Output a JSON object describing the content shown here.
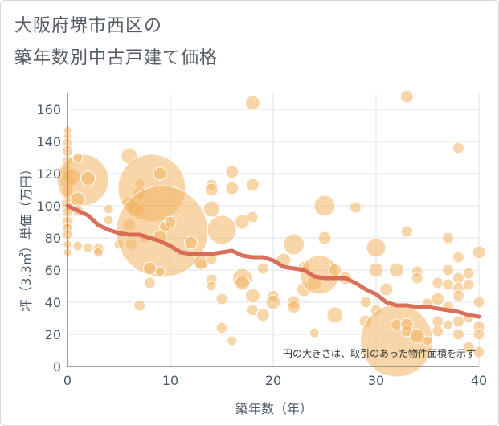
{
  "header": {
    "title_line1": "大阪府堺市西区の",
    "title_line2": "築年数別中古戸建て価格"
  },
  "chart_data": {
    "type": "scatter",
    "title": "大阪府堺市西区の築年数別中古戸建て価格",
    "xlabel": "築年数（年）",
    "ylabel": "坪（3.3㎡）単価（万円）",
    "xlim": [
      0,
      40
    ],
    "ylim": [
      0,
      170
    ],
    "x_ticks": [
      0,
      10,
      20,
      30,
      40
    ],
    "y_ticks": [
      0,
      20,
      40,
      60,
      80,
      100,
      120,
      140,
      160
    ],
    "grid": true,
    "note": "円の大きさは、取引のあった物件面積を示す",
    "colors": {
      "bubble": "#f3b562",
      "trend": "#d5604a",
      "grid": "#dde3ea"
    },
    "trend_line": {
      "x": [
        0,
        1,
        2,
        3,
        4,
        5,
        6,
        7,
        8,
        9,
        10,
        11,
        12,
        13,
        14,
        15,
        16,
        17,
        18,
        19,
        20,
        21,
        22,
        23,
        24,
        25,
        26,
        27,
        28,
        29,
        30,
        31,
        32,
        33,
        34,
        35,
        36,
        37,
        38,
        39,
        40
      ],
      "y": [
        100,
        97,
        94,
        88,
        85,
        83,
        82,
        82,
        80,
        78,
        75,
        71,
        70,
        70,
        70,
        71,
        72,
        69,
        68,
        68,
        66,
        62,
        61,
        60,
        56,
        55,
        55,
        55,
        52,
        48,
        45,
        40,
        38,
        38,
        37,
        37,
        36,
        35,
        34,
        32,
        31
      ]
    },
    "points": [
      {
        "x": 0,
        "y": 147,
        "s": 5
      },
      {
        "x": 0,
        "y": 143,
        "s": 5
      },
      {
        "x": 0,
        "y": 139,
        "s": 6
      },
      {
        "x": 0,
        "y": 134,
        "s": 7
      },
      {
        "x": 0,
        "y": 128,
        "s": 6
      },
      {
        "x": 0,
        "y": 121,
        "s": 8
      },
      {
        "x": 0,
        "y": 115,
        "s": 9
      },
      {
        "x": 0,
        "y": 109,
        "s": 7
      },
      {
        "x": 0,
        "y": 101,
        "s": 8
      },
      {
        "x": 0,
        "y": 96,
        "s": 6
      },
      {
        "x": 0,
        "y": 90,
        "s": 7
      },
      {
        "x": 0,
        "y": 86,
        "s": 6
      },
      {
        "x": 0,
        "y": 82,
        "s": 6
      },
      {
        "x": 0,
        "y": 76,
        "s": 5
      },
      {
        "x": 0,
        "y": 71,
        "s": 5
      },
      {
        "x": 0.4,
        "y": 118,
        "s": 11
      },
      {
        "x": 1.5,
        "y": 116,
        "s": 32
      },
      {
        "x": 1,
        "y": 130,
        "s": 6
      },
      {
        "x": 1,
        "y": 104,
        "s": 9
      },
      {
        "x": 1,
        "y": 97,
        "s": 7
      },
      {
        "x": 1,
        "y": 75,
        "s": 6
      },
      {
        "x": 2,
        "y": 117,
        "s": 9
      },
      {
        "x": 2,
        "y": 74,
        "s": 6
      },
      {
        "x": 3,
        "y": 73,
        "s": 7
      },
      {
        "x": 3,
        "y": 71,
        "s": 6
      },
      {
        "x": 4,
        "y": 91,
        "s": 6
      },
      {
        "x": 4,
        "y": 98,
        "s": 6
      },
      {
        "x": 5,
        "y": 76,
        "s": 6
      },
      {
        "x": 6,
        "y": 131,
        "s": 10
      },
      {
        "x": 6,
        "y": 101,
        "s": 9
      },
      {
        "x": 6,
        "y": 88,
        "s": 8
      },
      {
        "x": 6.5,
        "y": 98,
        "s": 8
      },
      {
        "x": 7,
        "y": 108,
        "s": 8
      },
      {
        "x": 7,
        "y": 114,
        "s": 6
      },
      {
        "x": 7,
        "y": 97,
        "s": 7
      },
      {
        "x": 6.2,
        "y": 76,
        "s": 7
      },
      {
        "x": 7,
        "y": 38,
        "s": 7
      },
      {
        "x": 7.5,
        "y": 80,
        "s": 6
      },
      {
        "x": 8.2,
        "y": 111,
        "s": 42
      },
      {
        "x": 9.2,
        "y": 84,
        "s": 57
      },
      {
        "x": 9,
        "y": 120,
        "s": 8
      },
      {
        "x": 8,
        "y": 61,
        "s": 8
      },
      {
        "x": 8,
        "y": 52,
        "s": 7
      },
      {
        "x": 9,
        "y": 59,
        "s": 6
      },
      {
        "x": 9,
        "y": 81,
        "s": 8
      },
      {
        "x": 9.5,
        "y": 87,
        "s": 7
      },
      {
        "x": 10,
        "y": 90,
        "s": 7
      },
      {
        "x": 12,
        "y": 77,
        "s": 8
      },
      {
        "x": 13,
        "y": 63,
        "s": 7
      },
      {
        "x": 13,
        "y": 65,
        "s": 9
      },
      {
        "x": 14,
        "y": 113,
        "s": 7
      },
      {
        "x": 14,
        "y": 110,
        "s": 8
      },
      {
        "x": 14,
        "y": 98,
        "s": 10
      },
      {
        "x": 14,
        "y": 67,
        "s": 7
      },
      {
        "x": 14,
        "y": 54,
        "s": 7
      },
      {
        "x": 14,
        "y": 50,
        "s": 6
      },
      {
        "x": 15,
        "y": 85,
        "s": 18
      },
      {
        "x": 15,
        "y": 42,
        "s": 7
      },
      {
        "x": 15,
        "y": 24,
        "s": 7
      },
      {
        "x": 16,
        "y": 121,
        "s": 8
      },
      {
        "x": 16,
        "y": 111,
        "s": 8
      },
      {
        "x": 16,
        "y": 16,
        "s": 6
      },
      {
        "x": 17,
        "y": 55,
        "s": 12
      },
      {
        "x": 17,
        "y": 52,
        "s": 9
      },
      {
        "x": 17,
        "y": 90,
        "s": 9
      },
      {
        "x": 18,
        "y": 164,
        "s": 9
      },
      {
        "x": 18,
        "y": 113,
        "s": 8
      },
      {
        "x": 18,
        "y": 93,
        "s": 7
      },
      {
        "x": 18,
        "y": 44,
        "s": 9
      },
      {
        "x": 18,
        "y": 35,
        "s": 7
      },
      {
        "x": 19,
        "y": 61,
        "s": 7
      },
      {
        "x": 19,
        "y": 32,
        "s": 8
      },
      {
        "x": 20,
        "y": 44,
        "s": 7
      },
      {
        "x": 20,
        "y": 40,
        "s": 9
      },
      {
        "x": 21,
        "y": 66,
        "s": 9
      },
      {
        "x": 22,
        "y": 76,
        "s": 13
      },
      {
        "x": 22,
        "y": 40,
        "s": 8
      },
      {
        "x": 22,
        "y": 37,
        "s": 8
      },
      {
        "x": 23,
        "y": 48,
        "s": 9
      },
      {
        "x": 23,
        "y": 62,
        "s": 7
      },
      {
        "x": 24,
        "y": 52,
        "s": 9
      },
      {
        "x": 24,
        "y": 21,
        "s": 6
      },
      {
        "x": 24.5,
        "y": 57,
        "s": 24
      },
      {
        "x": 25,
        "y": 100,
        "s": 13
      },
      {
        "x": 25,
        "y": 80,
        "s": 8
      },
      {
        "x": 26,
        "y": 60,
        "s": 8
      },
      {
        "x": 26,
        "y": 32,
        "s": 10
      },
      {
        "x": 27,
        "y": 55,
        "s": 8
      },
      {
        "x": 28,
        "y": 99,
        "s": 7
      },
      {
        "x": 29,
        "y": 40,
        "s": 7
      },
      {
        "x": 29,
        "y": 28,
        "s": 8
      },
      {
        "x": 30,
        "y": 74,
        "s": 12
      },
      {
        "x": 30,
        "y": 60,
        "s": 9
      },
      {
        "x": 30,
        "y": 35,
        "s": 7
      },
      {
        "x": 31,
        "y": 48,
        "s": 8
      },
      {
        "x": 32,
        "y": 16,
        "s": 45
      },
      {
        "x": 32,
        "y": 60,
        "s": 9
      },
      {
        "x": 32,
        "y": 26,
        "s": 7
      },
      {
        "x": 33,
        "y": 168,
        "s": 8
      },
      {
        "x": 33,
        "y": 84,
        "s": 7
      },
      {
        "x": 33,
        "y": 26,
        "s": 8
      },
      {
        "x": 33,
        "y": 22,
        "s": 7
      },
      {
        "x": 34,
        "y": 59,
        "s": 7
      },
      {
        "x": 34,
        "y": 55,
        "s": 7
      },
      {
        "x": 34,
        "y": 19,
        "s": 9
      },
      {
        "x": 35,
        "y": 39,
        "s": 7
      },
      {
        "x": 35,
        "y": 16,
        "s": 6
      },
      {
        "x": 36,
        "y": 52,
        "s": 7
      },
      {
        "x": 36,
        "y": 42,
        "s": 8
      },
      {
        "x": 36,
        "y": 28,
        "s": 7
      },
      {
        "x": 36,
        "y": 22,
        "s": 7
      },
      {
        "x": 37,
        "y": 80,
        "s": 7
      },
      {
        "x": 37,
        "y": 60,
        "s": 7
      },
      {
        "x": 37,
        "y": 51,
        "s": 7
      },
      {
        "x": 37,
        "y": 37,
        "s": 7
      },
      {
        "x": 37,
        "y": 26,
        "s": 6
      },
      {
        "x": 38,
        "y": 136,
        "s": 7
      },
      {
        "x": 38,
        "y": 68,
        "s": 7
      },
      {
        "x": 38,
        "y": 55,
        "s": 7
      },
      {
        "x": 38,
        "y": 49,
        "s": 7
      },
      {
        "x": 38,
        "y": 44,
        "s": 7
      },
      {
        "x": 38,
        "y": 28,
        "s": 7
      },
      {
        "x": 38,
        "y": 20,
        "s": 7
      },
      {
        "x": 39,
        "y": 58,
        "s": 7
      },
      {
        "x": 39,
        "y": 51,
        "s": 7
      },
      {
        "x": 39,
        "y": 30,
        "s": 6
      },
      {
        "x": 39,
        "y": 12,
        "s": 7
      },
      {
        "x": 40,
        "y": 71,
        "s": 8
      },
      {
        "x": 40,
        "y": 40,
        "s": 7
      },
      {
        "x": 40,
        "y": 25,
        "s": 7
      },
      {
        "x": 40,
        "y": 20,
        "s": 7
      },
      {
        "x": 40,
        "y": 9,
        "s": 7
      }
    ]
  }
}
